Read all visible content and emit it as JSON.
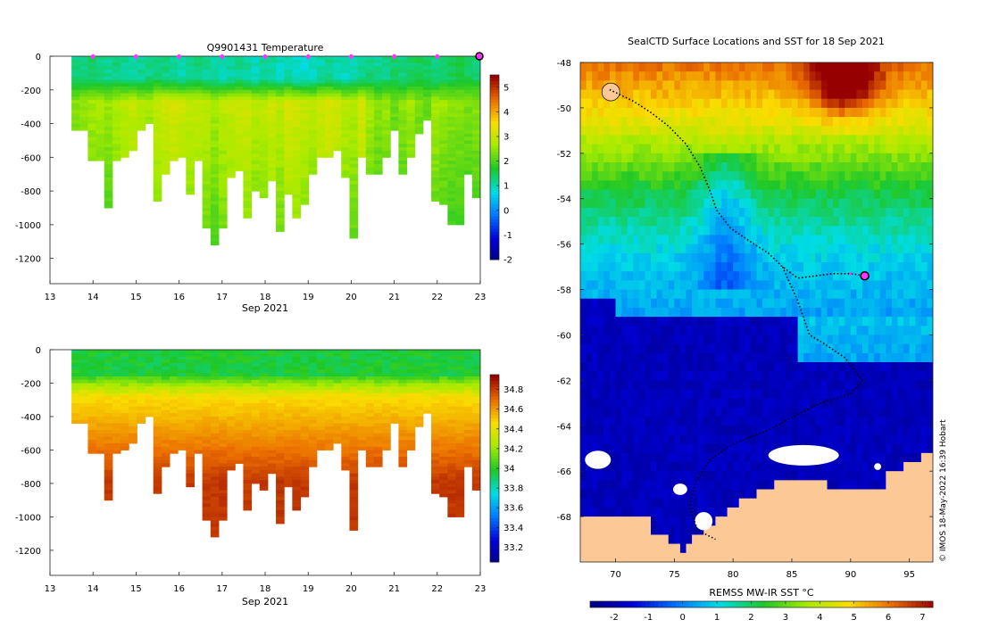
{
  "chart_data": [
    {
      "type": "heatmap",
      "panel": "temperature-section",
      "title": "Q9901431  Temperature",
      "xlabel": "Sep 2021",
      "ylabel": "",
      "xlim": [
        13,
        23
      ],
      "ylim": [
        -1350,
        0
      ],
      "xticks": [
        13,
        14,
        15,
        16,
        17,
        18,
        19,
        20,
        21,
        22,
        23
      ],
      "yticks": [
        0,
        -200,
        -400,
        -600,
        -800,
        -1000,
        -1200
      ],
      "colorbar": {
        "min": -2,
        "max": 5.5,
        "ticks": [
          5,
          4,
          3,
          2,
          1,
          0,
          -1,
          -2
        ]
      },
      "marker_days": [
        14,
        15,
        16,
        17,
        18,
        19,
        20,
        21,
        22
      ],
      "end_marker_day": 23,
      "profiles": {
        "start_day": 13.5,
        "end_day": 23,
        "depths": [
          430,
          440,
          610,
          610,
          900,
          610,
          600,
          550,
          430,
          400,
          850,
          700,
          620,
          600,
          820,
          620,
          1020,
          1110,
          1020,
          720,
          670,
          950,
          800,
          840,
          740,
          1040,
          820,
          950,
          880,
          700,
          600,
          600,
          550,
          710,
          1070,
          600,
          700,
          690,
          600,
          430,
          700,
          600,
          450,
          370,
          850,
          870,
          1000,
          1000,
          700,
          830
        ],
        "surface_temp": [
          1.3,
          1.3,
          1.4,
          1.3,
          1.2,
          1.3,
          1.2,
          1.1,
          1.2,
          1.3,
          1.4,
          1.3,
          1.2,
          1.1,
          1.2,
          1.3,
          1.2,
          1.1,
          1.0,
          1.1,
          1.2,
          1.1,
          1.0,
          1.2,
          1.1,
          1.0,
          1.1,
          0.9,
          0.9,
          1.0,
          1.1,
          1.2,
          1.1,
          1.0,
          1.1,
          1.2,
          1.3,
          1.2,
          1.3,
          1.4,
          1.3,
          1.4,
          1.5,
          1.4,
          1.3,
          1.4,
          1.5,
          1.6,
          1.5,
          1.4
        ],
        "core_temp": [
          2.4,
          2.5,
          2.6,
          2.6,
          2.5,
          2.7,
          2.8,
          2.9,
          2.7,
          2.6,
          2.9,
          3.0,
          3.1,
          3.0,
          2.9,
          2.9,
          2.8,
          2.6,
          2.8,
          2.9,
          3.0,
          3.0,
          2.8,
          2.8,
          3.0,
          2.8,
          3.1,
          3.0,
          2.9,
          2.8,
          3.0,
          3.1,
          3.0,
          2.8,
          2.7,
          3.1,
          2.6,
          2.4,
          2.5,
          2.2,
          2.4,
          2.6,
          2.3,
          2.2,
          2.6,
          2.5,
          2.4,
          2.4,
          2.3,
          2.4
        ]
      }
    },
    {
      "type": "heatmap",
      "panel": "salinity-section",
      "title": "",
      "xlabel": "Sep 2021",
      "ylabel": "",
      "xlim": [
        13,
        23
      ],
      "ylim": [
        -1350,
        0
      ],
      "xticks": [
        13,
        14,
        15,
        16,
        17,
        18,
        19,
        20,
        21,
        22,
        23
      ],
      "yticks": [
        0,
        -200,
        -400,
        -600,
        -800,
        -1000,
        -1200
      ],
      "colorbar": {
        "min": 33.05,
        "max": 34.95,
        "ticks": [
          34.8,
          34.6,
          34.4,
          34.2,
          34,
          33.8,
          33.6,
          33.4,
          33.2
        ]
      },
      "profiles": {
        "surface_sal": 33.95,
        "deep_sal": 34.72
      }
    },
    {
      "type": "heatmap",
      "panel": "sst-map",
      "title": "SealCTD Surface Locations and SST for 18 Sep 2021",
      "xlabel": "",
      "ylabel": "",
      "xlim": [
        67,
        97
      ],
      "ylim": [
        -70,
        -48
      ],
      "xticks": [
        70,
        75,
        80,
        85,
        90,
        95
      ],
      "yticks": [
        -48,
        -50,
        -52,
        -54,
        -56,
        -58,
        -60,
        -62,
        -64,
        -66,
        -68
      ],
      "colorbar": {
        "label": "REMSS MW-IR SST °C",
        "min": -2.7,
        "max": 7.3,
        "ticks": [
          -2,
          -1,
          0,
          1,
          2,
          3,
          4,
          5,
          6,
          7
        ]
      },
      "current_position": {
        "lon": 91.2,
        "lat": -57.4
      },
      "track": [
        [
          69.5,
          -49.2
        ],
        [
          71.5,
          -49.7
        ],
        [
          73.0,
          -50.2
        ],
        [
          74.5,
          -50.8
        ],
        [
          76.0,
          -51.6
        ],
        [
          77.2,
          -52.6
        ],
        [
          78.0,
          -53.6
        ],
        [
          78.6,
          -54.5
        ],
        [
          79.8,
          -55.3
        ],
        [
          81.5,
          -55.9
        ],
        [
          83.0,
          -56.4
        ],
        [
          84.2,
          -57.0
        ],
        [
          85.5,
          -57.5
        ],
        [
          87.0,
          -57.4
        ],
        [
          88.5,
          -57.3
        ],
        [
          90.0,
          -57.3
        ],
        [
          91.2,
          -57.4
        ]
      ],
      "track_south": [
        [
          84.2,
          -57.0
        ],
        [
          85.5,
          -58.5
        ],
        [
          86.5,
          -60.0
        ],
        [
          87.5,
          -60.3
        ],
        [
          89.5,
          -61.0
        ],
        [
          91.0,
          -62.0
        ],
        [
          90.0,
          -62.6
        ],
        [
          87.5,
          -63.0
        ],
        [
          85.5,
          -63.5
        ],
        [
          83.0,
          -64.2
        ],
        [
          80.0,
          -64.8
        ],
        [
          78.0,
          -65.5
        ],
        [
          76.8,
          -66.5
        ],
        [
          76.3,
          -67.6
        ],
        [
          77.0,
          -68.6
        ],
        [
          78.5,
          -69.0
        ]
      ]
    }
  ],
  "annotations": {
    "credit": "© IMOS 18-May-2022 16:39 Hobart"
  },
  "colors": {
    "marker": "#ff33ff",
    "track": "#000000",
    "land": "#fcc896",
    "sea_ice": "#ffffff"
  }
}
